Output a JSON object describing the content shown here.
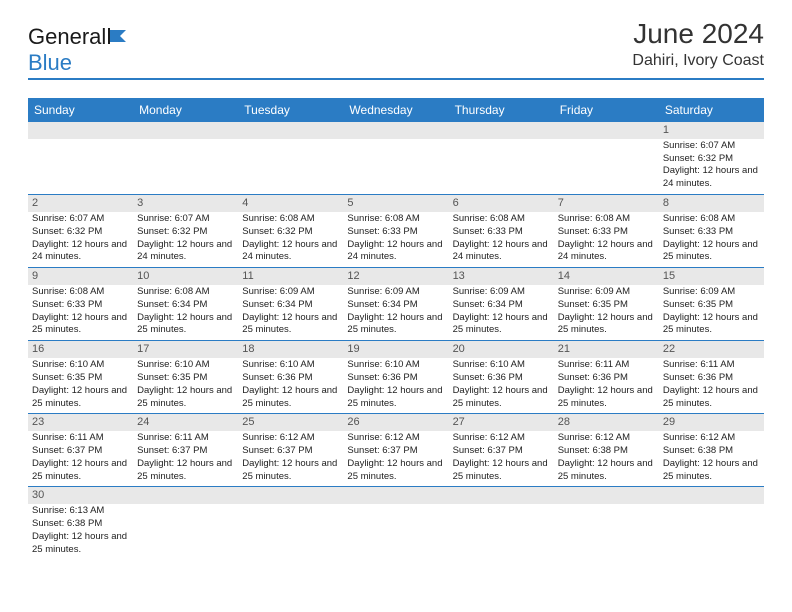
{
  "brand": {
    "part1": "General",
    "part2": "Blue"
  },
  "title": "June 2024",
  "location": "Dahiri, Ivory Coast",
  "colors": {
    "accent": "#2b7cc4",
    "header_bg": "#2b7cc4",
    "daynum_bg": "#e8e8e8"
  },
  "day_names": [
    "Sunday",
    "Monday",
    "Tuesday",
    "Wednesday",
    "Thursday",
    "Friday",
    "Saturday"
  ],
  "weeks": [
    [
      null,
      null,
      null,
      null,
      null,
      null,
      {
        "n": "1",
        "sr": "Sunrise: 6:07 AM",
        "ss": "Sunset: 6:32 PM",
        "dl": "Daylight: 12 hours and 24 minutes."
      }
    ],
    [
      {
        "n": "2",
        "sr": "Sunrise: 6:07 AM",
        "ss": "Sunset: 6:32 PM",
        "dl": "Daylight: 12 hours and 24 minutes."
      },
      {
        "n": "3",
        "sr": "Sunrise: 6:07 AM",
        "ss": "Sunset: 6:32 PM",
        "dl": "Daylight: 12 hours and 24 minutes."
      },
      {
        "n": "4",
        "sr": "Sunrise: 6:08 AM",
        "ss": "Sunset: 6:32 PM",
        "dl": "Daylight: 12 hours and 24 minutes."
      },
      {
        "n": "5",
        "sr": "Sunrise: 6:08 AM",
        "ss": "Sunset: 6:33 PM",
        "dl": "Daylight: 12 hours and 24 minutes."
      },
      {
        "n": "6",
        "sr": "Sunrise: 6:08 AM",
        "ss": "Sunset: 6:33 PM",
        "dl": "Daylight: 12 hours and 24 minutes."
      },
      {
        "n": "7",
        "sr": "Sunrise: 6:08 AM",
        "ss": "Sunset: 6:33 PM",
        "dl": "Daylight: 12 hours and 24 minutes."
      },
      {
        "n": "8",
        "sr": "Sunrise: 6:08 AM",
        "ss": "Sunset: 6:33 PM",
        "dl": "Daylight: 12 hours and 25 minutes."
      }
    ],
    [
      {
        "n": "9",
        "sr": "Sunrise: 6:08 AM",
        "ss": "Sunset: 6:33 PM",
        "dl": "Daylight: 12 hours and 25 minutes."
      },
      {
        "n": "10",
        "sr": "Sunrise: 6:08 AM",
        "ss": "Sunset: 6:34 PM",
        "dl": "Daylight: 12 hours and 25 minutes."
      },
      {
        "n": "11",
        "sr": "Sunrise: 6:09 AM",
        "ss": "Sunset: 6:34 PM",
        "dl": "Daylight: 12 hours and 25 minutes."
      },
      {
        "n": "12",
        "sr": "Sunrise: 6:09 AM",
        "ss": "Sunset: 6:34 PM",
        "dl": "Daylight: 12 hours and 25 minutes."
      },
      {
        "n": "13",
        "sr": "Sunrise: 6:09 AM",
        "ss": "Sunset: 6:34 PM",
        "dl": "Daylight: 12 hours and 25 minutes."
      },
      {
        "n": "14",
        "sr": "Sunrise: 6:09 AM",
        "ss": "Sunset: 6:35 PM",
        "dl": "Daylight: 12 hours and 25 minutes."
      },
      {
        "n": "15",
        "sr": "Sunrise: 6:09 AM",
        "ss": "Sunset: 6:35 PM",
        "dl": "Daylight: 12 hours and 25 minutes."
      }
    ],
    [
      {
        "n": "16",
        "sr": "Sunrise: 6:10 AM",
        "ss": "Sunset: 6:35 PM",
        "dl": "Daylight: 12 hours and 25 minutes."
      },
      {
        "n": "17",
        "sr": "Sunrise: 6:10 AM",
        "ss": "Sunset: 6:35 PM",
        "dl": "Daylight: 12 hours and 25 minutes."
      },
      {
        "n": "18",
        "sr": "Sunrise: 6:10 AM",
        "ss": "Sunset: 6:36 PM",
        "dl": "Daylight: 12 hours and 25 minutes."
      },
      {
        "n": "19",
        "sr": "Sunrise: 6:10 AM",
        "ss": "Sunset: 6:36 PM",
        "dl": "Daylight: 12 hours and 25 minutes."
      },
      {
        "n": "20",
        "sr": "Sunrise: 6:10 AM",
        "ss": "Sunset: 6:36 PM",
        "dl": "Daylight: 12 hours and 25 minutes."
      },
      {
        "n": "21",
        "sr": "Sunrise: 6:11 AM",
        "ss": "Sunset: 6:36 PM",
        "dl": "Daylight: 12 hours and 25 minutes."
      },
      {
        "n": "22",
        "sr": "Sunrise: 6:11 AM",
        "ss": "Sunset: 6:36 PM",
        "dl": "Daylight: 12 hours and 25 minutes."
      }
    ],
    [
      {
        "n": "23",
        "sr": "Sunrise: 6:11 AM",
        "ss": "Sunset: 6:37 PM",
        "dl": "Daylight: 12 hours and 25 minutes."
      },
      {
        "n": "24",
        "sr": "Sunrise: 6:11 AM",
        "ss": "Sunset: 6:37 PM",
        "dl": "Daylight: 12 hours and 25 minutes."
      },
      {
        "n": "25",
        "sr": "Sunrise: 6:12 AM",
        "ss": "Sunset: 6:37 PM",
        "dl": "Daylight: 12 hours and 25 minutes."
      },
      {
        "n": "26",
        "sr": "Sunrise: 6:12 AM",
        "ss": "Sunset: 6:37 PM",
        "dl": "Daylight: 12 hours and 25 minutes."
      },
      {
        "n": "27",
        "sr": "Sunrise: 6:12 AM",
        "ss": "Sunset: 6:37 PM",
        "dl": "Daylight: 12 hours and 25 minutes."
      },
      {
        "n": "28",
        "sr": "Sunrise: 6:12 AM",
        "ss": "Sunset: 6:38 PM",
        "dl": "Daylight: 12 hours and 25 minutes."
      },
      {
        "n": "29",
        "sr": "Sunrise: 6:12 AM",
        "ss": "Sunset: 6:38 PM",
        "dl": "Daylight: 12 hours and 25 minutes."
      }
    ],
    [
      {
        "n": "30",
        "sr": "Sunrise: 6:13 AM",
        "ss": "Sunset: 6:38 PM",
        "dl": "Daylight: 12 hours and 25 minutes."
      },
      null,
      null,
      null,
      null,
      null,
      null
    ]
  ]
}
